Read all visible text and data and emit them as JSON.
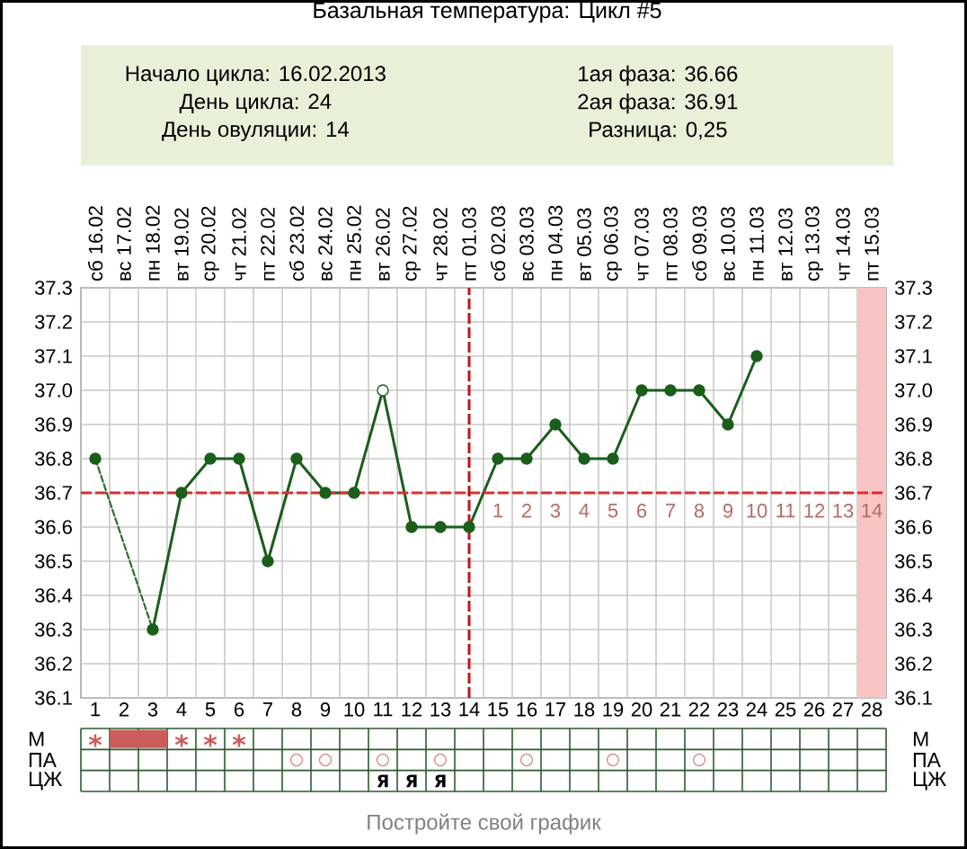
{
  "chart_data": [
    {
      "type": "other",
      "title": "Базальная температура: Цикл #5",
      "annotations": [
        "Начало цикла: 16.02.2013",
        "День цикла: 24",
        "День овуляции: 14",
        "1ая фаза: 36.66",
        "2ая фаза: 36.91",
        "Разница: 0,25"
      ]
    },
    {
      "type": "line",
      "x": [
        1,
        2,
        3,
        4,
        5,
        6,
        7,
        8,
        9,
        10,
        11,
        12,
        13,
        14,
        15,
        16,
        17,
        18,
        19,
        20,
        21,
        22,
        23,
        24
      ],
      "xlim": [
        0.5,
        28.5
      ],
      "xticks": [
        1,
        2,
        3,
        4,
        5,
        6,
        7,
        8,
        9,
        10,
        11,
        12,
        13,
        14,
        15,
        16,
        17,
        18,
        19,
        20,
        21,
        22,
        23,
        24,
        25,
        26,
        27,
        28
      ],
      "x2lim": [
        "2013-02-15T12:00",
        "2013-03-15T12:00"
      ],
      "x2ticks": [
        {
          "value": "2013-02-16",
          "label": "сб 16.02"
        },
        {
          "value": "2013-02-17",
          "label": "вс 17.02"
        },
        {
          "value": "2013-02-18",
          "label": "пн 18.02"
        },
        {
          "value": "2013-02-19",
          "label": "вт 19.02"
        },
        {
          "value": "2013-02-20",
          "label": "ср 20.02"
        },
        {
          "value": "2013-02-21",
          "label": "чт 21.02"
        },
        {
          "value": "2013-02-22",
          "label": "пт 22.02"
        },
        {
          "value": "2013-02-23",
          "label": "сб 23.02"
        },
        {
          "value": "2013-02-24",
          "label": "вс 24.02"
        },
        {
          "value": "2013-02-25",
          "label": "пн 25.02"
        },
        {
          "value": "2013-02-26",
          "label": "вт 26.02"
        },
        {
          "value": "2013-02-27",
          "label": "ср 27.02"
        },
        {
          "value": "2013-02-28",
          "label": "чт 28.02"
        },
        {
          "value": "2013-03-01",
          "label": "пт 01.03"
        },
        {
          "value": "2013-03-02",
          "label": "сб 02.03"
        },
        {
          "value": "2013-03-03",
          "label": "вс 03.03"
        },
        {
          "value": "2013-03-04",
          "label": "пн 04.03"
        },
        {
          "value": "2013-03-05",
          "label": "вт 05.03"
        },
        {
          "value": "2013-03-06",
          "label": "ср 06.03"
        },
        {
          "value": "2013-03-07",
          "label": "чт 07.03"
        },
        {
          "value": "2013-03-08",
          "label": "пт 08.03"
        },
        {
          "value": "2013-03-09",
          "label": "сб 09.03"
        },
        {
          "value": "2013-03-10",
          "label": "вс 10.03"
        },
        {
          "value": "2013-03-11",
          "label": "пн 11.03"
        },
        {
          "value": "2013-03-12",
          "label": "вт 12.03"
        },
        {
          "value": "2013-03-13",
          "label": "ср 13.03"
        },
        {
          "value": "2013-03-14",
          "label": "чт 14.03"
        },
        {
          "value": "2013-03-15",
          "label": "пт 15.03"
        }
      ],
      "ylim": [
        36.1,
        37.3
      ],
      "yticks": [
        36.1,
        36.2,
        36.3,
        36.4,
        36.5,
        36.6,
        36.7,
        36.8,
        36.9,
        {
          "value": 37,
          "label": "37.0"
        },
        37.1,
        37.2,
        37.3
      ],
      "y2lim": [
        36.1,
        37.3
      ],
      "y2ticks": [
        36.1,
        36.2,
        36.3,
        36.4,
        36.5,
        36.6,
        36.7,
        36.8,
        36.9,
        {
          "value": 37,
          "label": "37.0"
        },
        37.1,
        37.2,
        37.3
      ],
      "grid": true,
      "marker": "circle",
      "series": [
        {
          "color": "#1a5e1a",
          "values": [
            36.8,
            null,
            36.3,
            36.7,
            36.8,
            36.8,
            36.5,
            36.8,
            36.7,
            36.7,
            37.0,
            36.6,
            36.6,
            36.6,
            36.8,
            36.8,
            36.9,
            36.8,
            36.8,
            37.0,
            37.0,
            37.0,
            36.9,
            37.1
          ],
          "colors": [
            "#1a5e1a",
            null,
            "#1a5e1a",
            "#1a5e1a",
            "#1a5e1a",
            "#1a5e1a",
            "#1a5e1a",
            "#1a5e1a",
            "#1a5e1a",
            "#1a5e1a",
            "#ffffff",
            "#1a5e1a",
            "#1a5e1a",
            "#1a5e1a",
            "#1a5e1a",
            "#1a5e1a",
            "#1a5e1a",
            "#1a5e1a",
            "#1a5e1a",
            "#1a5e1a",
            "#1a5e1a",
            "#1a5e1a",
            "#1a5e1a",
            "#1a5e1a"
          ]
        },
        {
          "x": [
            1,
            3
          ],
          "values": [
            36.8,
            36.3
          ],
          "color": "#2d6e2d",
          "line_style": "dashed",
          "marker": "none"
        }
      ],
      "ref_lines": [
        {
          "axis": "y",
          "value": 36.7,
          "color": "#d83030",
          "line_style": "dashed"
        },
        {
          "axis": "x",
          "value": 14,
          "color": "#c01418",
          "line_style": "dashed"
        }
      ],
      "bands": [
        {
          "axis": "x",
          "from": 27.5,
          "to": 28.5,
          "color": "#f8c4c4"
        }
      ],
      "annotations": [
        "1",
        "2",
        "3",
        "4",
        "5",
        "6",
        "7",
        "8",
        "9",
        "10",
        "11",
        "12",
        "13",
        "14"
      ]
    },
    {
      "type": "other",
      "y_categories": [
        "М",
        "ПА",
        "ЦЖ"
      ],
      "y2_categories": [
        "М",
        "ПА",
        "ЦЖ"
      ],
      "cell_labels": [
        [
          "*",
          null,
          null,
          "*",
          "*",
          "*",
          null,
          null,
          null,
          null,
          null,
          null,
          null,
          null,
          null,
          null,
          null,
          null,
          null,
          null,
          null,
          null,
          null,
          null,
          null,
          null,
          null,
          null
        ],
        [
          null,
          null,
          null,
          null,
          null,
          null,
          null,
          "○",
          "○",
          null,
          "○",
          null,
          "○",
          null,
          null,
          "○",
          null,
          null,
          "○",
          null,
          null,
          "○",
          null,
          null,
          null,
          null,
          null,
          null
        ],
        [
          null,
          null,
          null,
          null,
          null,
          null,
          null,
          null,
          null,
          null,
          "Я",
          "Я",
          "Я",
          null,
          null,
          null,
          null,
          null,
          null,
          null,
          null,
          null,
          null,
          null,
          null,
          null,
          null,
          null
        ]
      ],
      "colors": [
        [
          "#cc5c5c",
          "#cc5c5c",
          "#cc5c5c",
          "#cc5c5c",
          "#cc5c5c",
          "#cc5c5c",
          null,
          null,
          null,
          null,
          null,
          null,
          null,
          null,
          null,
          null,
          null,
          null,
          null,
          null,
          null,
          null,
          null,
          null,
          null,
          null,
          null,
          null
        ],
        [
          null,
          null,
          null,
          null,
          null,
          null,
          null,
          "#cc6a6a",
          "#cc6a6a",
          null,
          "#cc6a6a",
          null,
          "#cc6a6a",
          null,
          null,
          "#cc6a6a",
          null,
          null,
          "#cc6a6a",
          null,
          null,
          "#cc6a6a",
          null,
          null,
          null,
          null,
          null,
          null
        ],
        [
          null,
          null,
          null,
          null,
          null,
          null,
          null,
          null,
          null,
          null,
          "#000000",
          "#000000",
          "#000000",
          null,
          null,
          null,
          null,
          null,
          null,
          null,
          null,
          null,
          null,
          null,
          null,
          null,
          null,
          null
        ]
      ],
      "annotations": [
        "Постройте свой график"
      ]
    }
  ]
}
